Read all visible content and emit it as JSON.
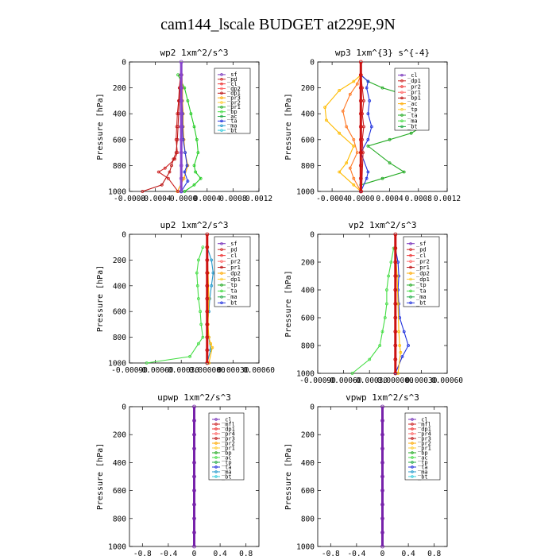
{
  "title": "cam144_lscale  BUDGET at229E,9N",
  "chart_data": [
    {
      "type": "line",
      "title": "wp2  1xm^2/s^3",
      "ylabel": "Pressure [hPa]",
      "xlim": [
        -0.0008,
        0.0012
      ],
      "ylim": [
        1000,
        0
      ],
      "yticks": [
        0,
        200,
        400,
        600,
        800,
        1000
      ],
      "xticks": [
        -0.0008,
        -0.0004,
        0.0,
        0.0004,
        0.0008,
        0.0012
      ],
      "xtick_labels": [
        "-0.0008",
        "-0.0004",
        "-0.0000",
        "0.0004",
        "0.0008",
        "0.0012"
      ],
      "legend": [
        "_sf",
        "_pd",
        "_cl",
        "_dp2",
        "_dp1",
        "_pr3",
        "_pr2",
        "_pr1",
        "_bp",
        "_ac",
        "_ta",
        "_ma",
        "_bt"
      ],
      "series": [
        {
          "name": "_bp",
          "color": "#22cc22",
          "x": [
            -5e-05,
            5e-05,
            0.0001,
            0.00015,
            0.0002,
            0.00024,
            0.00026,
            0.0002,
            0.00022,
            0.0003,
            0.0002,
            5e-05
          ],
          "y": [
            100,
            200,
            300,
            400,
            500,
            600,
            700,
            800,
            850,
            900,
            950,
            1000
          ]
        },
        {
          "name": "_pr1",
          "color": "#ffaa00",
          "x": [
            1e-05,
            2e-05,
            2e-05,
            3e-05,
            3e-05,
            4e-05,
            6e-05,
            0.0001,
            4e-05,
            -6e-05
          ],
          "y": [
            100,
            200,
            300,
            400,
            500,
            600,
            700,
            800,
            900,
            1000
          ]
        },
        {
          "name": "_dp2",
          "color": "#cc2222",
          "x": [
            -1e-05,
            -3e-05,
            -4e-05,
            -6e-05,
            -7e-05,
            -8e-05,
            -6e-05,
            -0.0001,
            -0.00025,
            -0.00035,
            -0.0002,
            -5e-05
          ],
          "y": [
            100,
            200,
            300,
            400,
            500,
            600,
            700,
            750,
            820,
            850,
            900,
            1000
          ]
        },
        {
          "name": "_dp1",
          "color": "#bb1111",
          "x": [
            -1e-05,
            -2e-05,
            -3e-05,
            -4e-05,
            -5e-05,
            -6e-05,
            -8e-05,
            -0.00012,
            -0.00015,
            -0.00018,
            -0.0003,
            -0.0006
          ],
          "y": [
            100,
            200,
            300,
            400,
            500,
            600,
            700,
            750,
            800,
            850,
            950,
            1000
          ]
        },
        {
          "name": "_ta",
          "color": "#2233dd",
          "x": [
            0.0,
            1e-05,
            1e-05,
            2e-05,
            2e-05,
            3e-05,
            6e-05,
            9e-05,
            5e-05,
            0.0001,
            0.0
          ],
          "y": [
            100,
            200,
            300,
            400,
            500,
            600,
            700,
            800,
            850,
            920,
            1000
          ]
        },
        {
          "name": "_sf",
          "color": "#8844cc",
          "x": [
            0.0,
            0.0,
            0.0,
            0.0,
            0.0,
            0.0,
            0.0,
            0.0,
            0.0,
            0.0,
            0.0
          ],
          "y": [
            0,
            100,
            200,
            300,
            400,
            500,
            600,
            700,
            800,
            900,
            1000
          ]
        }
      ]
    },
    {
      "type": "line",
      "title": "wp3  1xm^{3} s^{-4}",
      "ylabel": "Pressure [hPa]",
      "xlim": [
        -0.0006,
        0.0012
      ],
      "ylim": [
        1000,
        0
      ],
      "yticks": [
        0,
        200,
        400,
        600,
        800,
        1000
      ],
      "xticks": [
        -0.0004,
        0.0,
        0.0004,
        0.0008,
        0.0012
      ],
      "xtick_labels": [
        "-0.0004",
        "0.0000",
        "0.0004",
        "0.0008",
        "0.0012"
      ],
      "legend": [
        "_cl",
        "_dp1",
        "_pr2",
        "_pr1",
        "_bp1",
        "_ac",
        "_tp",
        "_ta",
        "_ma",
        "_bt"
      ],
      "series": [
        {
          "name": "_ac",
          "color": "#22aa22",
          "x": [
            0.0,
            0.0001,
            0.0003,
            0.0006,
            0.0008,
            0.0009,
            0.00085,
            0.0007,
            0.0004,
            0.0001,
            0.0004,
            0.0006,
            0.0003,
            0.0
          ],
          "y": [
            100,
            150,
            200,
            250,
            300,
            400,
            500,
            550,
            600,
            650,
            780,
            850,
            900,
            950
          ]
        },
        {
          "name": "_pr1",
          "color": "#ffbb00",
          "x": [
            0.0,
            -0.0001,
            -0.0003,
            -0.0005,
            -0.00048,
            -0.0003,
            -0.0001,
            -0.0002,
            -0.0003,
            -0.0001,
            0.0
          ],
          "y": [
            100,
            150,
            220,
            350,
            450,
            550,
            650,
            780,
            850,
            950,
            1000
          ]
        },
        {
          "name": "_pr2",
          "color": "#ff7722",
          "x": [
            0.0,
            -5e-05,
            -0.00015,
            -0.00025,
            -0.0002,
            -0.0001,
            -5e-05,
            -0.00015,
            -0.0001,
            0.0
          ],
          "y": [
            100,
            170,
            250,
            380,
            500,
            600,
            700,
            820,
            900,
            1000
          ]
        },
        {
          "name": "_tp",
          "color": "#2233dd",
          "x": [
            0.0,
            0.0001,
            8e-05,
            0.00012,
            0.0001,
            0.00015,
            0.0001,
            0.0,
            0.0001,
            8e-05,
            0.0
          ],
          "y": [
            100,
            150,
            200,
            300,
            400,
            500,
            600,
            700,
            850,
            900,
            1000
          ]
        },
        {
          "name": "_dp1",
          "color": "#cc2222",
          "x": [
            0.0,
            2e-05,
            4e-05,
            2e-05,
            4e-05,
            2e-05,
            3e-05,
            1e-05
          ],
          "y": [
            100,
            200,
            300,
            400,
            500,
            600,
            700,
            1000
          ]
        },
        {
          "name": "_cl",
          "color": "#cc1111",
          "x": [
            0.0,
            0.0,
            0.0,
            0.0,
            0.0,
            0.0,
            0.0,
            0.0,
            0.0,
            0.0,
            0.0
          ],
          "y": [
            0,
            100,
            200,
            300,
            400,
            500,
            600,
            700,
            800,
            900,
            1000
          ]
        }
      ]
    },
    {
      "type": "line",
      "title": "up2  1xm^2/s^3",
      "ylabel": "Pressure [hPa]",
      "xlim": [
        -0.0009,
        0.0006
      ],
      "ylim": [
        1000,
        0
      ],
      "yticks": [
        0,
        200,
        400,
        600,
        800,
        1000
      ],
      "xticks": [
        -0.0009,
        -0.0006,
        -0.0003,
        0.0,
        0.0003,
        0.0006
      ],
      "xtick_labels": [
        "-0.00090",
        "-0.00060",
        "-0.00030",
        "0.000000",
        "0.00030",
        "0.00060"
      ],
      "legend": [
        "_sf",
        "_pd",
        "_cl",
        "_pr2",
        "_pr1",
        "_dp2",
        "_dp1",
        "_tp",
        "_ta",
        "_ma",
        "_bt"
      ],
      "series": [
        {
          "name": "_dp1",
          "color": "#44dd44",
          "x": [
            -5e-05,
            -0.0001,
            -0.00012,
            -0.00011,
            -0.0001,
            -8e-05,
            -7e-05,
            -5e-05,
            -0.0001,
            -0.0002,
            -0.0007
          ],
          "y": [
            100,
            200,
            300,
            400,
            500,
            600,
            700,
            800,
            850,
            950,
            1000
          ]
        },
        {
          "name": "_tp",
          "color": "#2299cc",
          "x": [
            0.0,
            5e-05,
            7e-05,
            5e-05,
            3e-05,
            2e-05,
            0.0,
            2e-05,
            4e-05,
            0.0
          ],
          "y": [
            100,
            200,
            300,
            400,
            500,
            600,
            700,
            800,
            900,
            1000
          ]
        },
        {
          "name": "_pr1",
          "color": "#ffbb00",
          "x": [
            0.0,
            1e-05,
            2e-05,
            1e-05,
            2e-05,
            4e-05,
            6e-05,
            2e-05
          ],
          "y": [
            100,
            300,
            500,
            700,
            800,
            850,
            880,
            1000
          ]
        },
        {
          "name": "_sf",
          "color": "#cc1111",
          "x": [
            0.0,
            0.0,
            0.0,
            0.0,
            0.0,
            0.0,
            0.0,
            0.0,
            0.0,
            0.0,
            0.0
          ],
          "y": [
            0,
            100,
            200,
            300,
            400,
            500,
            600,
            700,
            800,
            900,
            1000
          ]
        }
      ]
    },
    {
      "type": "line",
      "title": "vp2  1xm^2/s^3",
      "ylabel": "Pressure [hPa]",
      "xlim": [
        -0.0009,
        0.0006
      ],
      "ylim": [
        1000,
        0
      ],
      "yticks": [
        0,
        200,
        400,
        600,
        800,
        1000
      ],
      "xticks": [
        -0.0009,
        -0.0006,
        -0.0003,
        0.0,
        0.0003,
        0.0006
      ],
      "xtick_labels": [
        "-0.00090",
        "-0.00060",
        "-0.00030",
        "0.000000",
        "0.00030",
        "0.00060"
      ],
      "legend": [
        "_sf",
        "_pd",
        "_cl",
        "_pr2",
        "_pr1",
        "_dp2",
        "_dp1",
        "_tp",
        "_ta",
        "_ma",
        "_bt"
      ],
      "series": [
        {
          "name": "_dp1",
          "color": "#44dd44",
          "x": [
            -2e-05,
            -5e-05,
            -8e-05,
            -0.0001,
            -0.0001,
            -0.00012,
            -0.00015,
            -0.00018,
            -0.0003,
            -0.0005
          ],
          "y": [
            100,
            200,
            300,
            400,
            500,
            600,
            700,
            800,
            900,
            1000
          ]
        },
        {
          "name": "_tp",
          "color": "#2233dd",
          "x": [
            0.0,
            3e-05,
            4e-05,
            3e-05,
            4e-05,
            5e-05,
            0.0001,
            0.00015,
            8e-05,
            0.0
          ],
          "y": [
            100,
            200,
            300,
            400,
            500,
            600,
            700,
            800,
            880,
            1000
          ]
        },
        {
          "name": "_pr1",
          "color": "#ffbb00",
          "x": [
            0.0,
            2e-05,
            3e-05,
            4e-05,
            5e-05,
            6e-05,
            3e-05
          ],
          "y": [
            100,
            300,
            500,
            700,
            800,
            850,
            1000
          ]
        },
        {
          "name": "_sf",
          "color": "#cc1111",
          "x": [
            0.0,
            0.0,
            0.0,
            0.0,
            0.0,
            0.0,
            0.0,
            0.0,
            0.0,
            0.0,
            0.0
          ],
          "y": [
            0,
            100,
            200,
            300,
            400,
            500,
            600,
            700,
            800,
            900,
            1000
          ]
        }
      ]
    },
    {
      "type": "line",
      "title": "upwp  1xm^2/s^3",
      "ylabel": "Pressure [hPa]",
      "xlim": [
        -1.0,
        1.0
      ],
      "ylim": [
        1000,
        0
      ],
      "yticks": [
        0,
        200,
        400,
        600,
        800,
        1000
      ],
      "xticks": [
        -0.8,
        -0.4,
        0.0,
        0.4,
        0.8
      ],
      "xtick_labels": [
        "-0.8",
        "-0.4",
        "0",
        "0.4",
        "0.8"
      ],
      "legend": [
        "_cl",
        "_mfl",
        "_dp1",
        "_pr4",
        "_pr3",
        "_pr2",
        "_pr1",
        "_bp",
        "_ac",
        "_tp",
        "_ta",
        "_ma",
        "_bt"
      ],
      "series": [
        {
          "name": "_cl",
          "color": "#7722aa",
          "x": [
            0.0,
            0.0,
            0.0,
            0.0,
            0.0,
            0.0,
            0.0,
            0.0,
            0.0,
            0.0,
            0.0
          ],
          "y": [
            0,
            100,
            200,
            300,
            400,
            500,
            600,
            700,
            800,
            900,
            1000
          ]
        }
      ]
    },
    {
      "type": "line",
      "title": "vpwp  1xm^2/s^3",
      "ylabel": "Pressure [hPa]",
      "xlim": [
        -1.0,
        1.0
      ],
      "ylim": [
        1000,
        0
      ],
      "yticks": [
        0,
        200,
        400,
        600,
        800,
        1000
      ],
      "xticks": [
        -0.8,
        -0.4,
        0.0,
        0.4,
        0.8
      ],
      "xtick_labels": [
        "-0.8",
        "-0.4",
        "0",
        "0.4",
        "0.8"
      ],
      "legend": [
        "_cl",
        "_mfl",
        "_dp1",
        "_pr4",
        "_pr3",
        "_pr2",
        "_pr1",
        "_bp",
        "_ac",
        "_tp",
        "_ta",
        "_ma",
        "_bt"
      ],
      "series": [
        {
          "name": "_cl",
          "color": "#7722aa",
          "x": [
            0.0,
            0.0,
            0.0,
            0.0,
            0.0,
            0.0,
            0.0,
            0.0,
            0.0,
            0.0,
            0.0
          ],
          "y": [
            0,
            100,
            200,
            300,
            400,
            500,
            600,
            700,
            800,
            900,
            1000
          ]
        }
      ]
    }
  ]
}
